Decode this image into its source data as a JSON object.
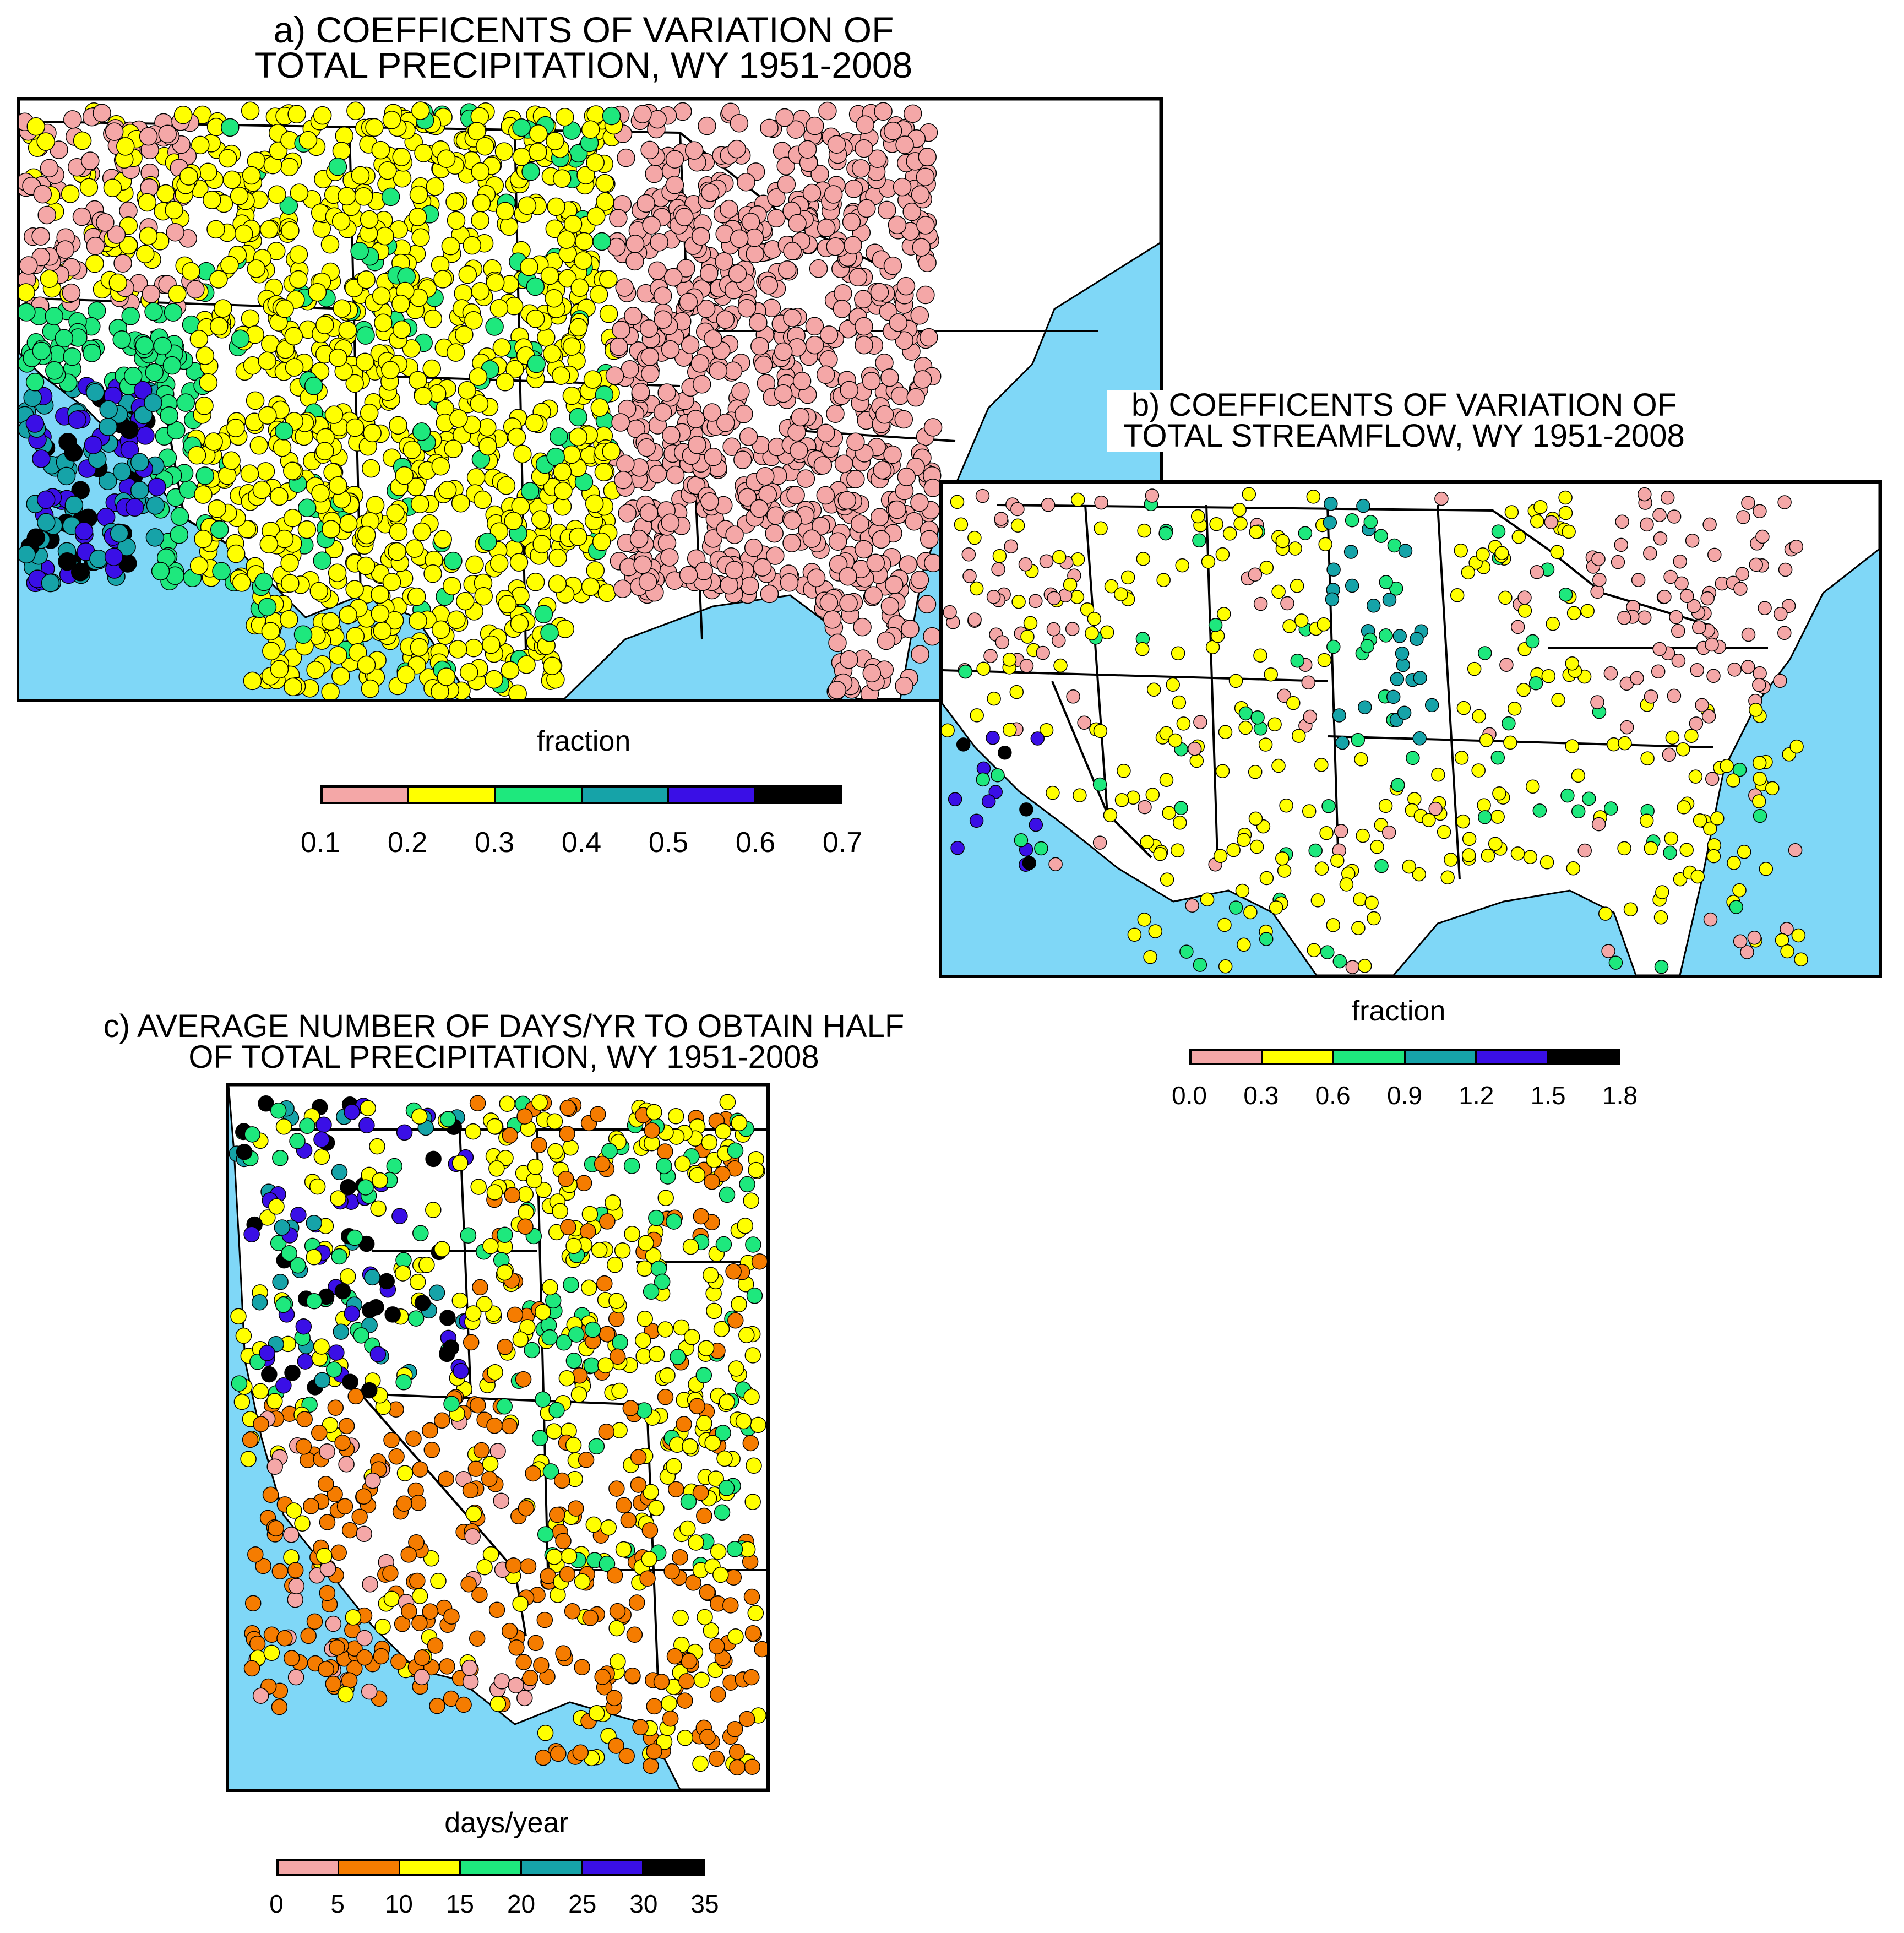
{
  "panels": [
    {
      "id": "a",
      "title": "a) COEFFICENTS OF VARIATION OF\nTOTAL PRECIPITATION, WY 1951-2008",
      "units": "fraction",
      "bins": [
        "0.1",
        "0.2",
        "0.3",
        "0.4",
        "0.5",
        "0.6",
        "0.7"
      ],
      "colors": [
        "#f4a7a7",
        "#ffff00",
        "#1ee87d",
        "#16a3a8",
        "#3a0fe6",
        "#000000"
      ]
    },
    {
      "id": "b",
      "title": "b) COEFFICENTS OF VARIATION OF\nTOTAL STREAMFLOW, WY 1951-2008",
      "units": "fraction",
      "bins": [
        "0.0",
        "0.3",
        "0.6",
        "0.9",
        "1.2",
        "1.5",
        "1.8"
      ],
      "colors": [
        "#f4a7a7",
        "#ffff00",
        "#1ee87d",
        "#16a3a8",
        "#3a0fe6",
        "#000000"
      ]
    },
    {
      "id": "c",
      "title": "c) AVERAGE NUMBER OF DAYS/YR TO OBTAIN HALF\nOF TOTAL PRECIPITATION, WY 1951-2008",
      "units": "days/year",
      "bins": [
        "0",
        "5",
        "10",
        "15",
        "20",
        "25",
        "30",
        "35"
      ],
      "colors": [
        "#f4a7a7",
        "#f57c00",
        "#ffff00",
        "#1ee87d",
        "#16a3a8",
        "#3a0fe6",
        "#000000"
      ]
    }
  ],
  "colors": {
    "water": "#7fd7f7",
    "land": "#ffffff",
    "border": "#000000"
  }
}
